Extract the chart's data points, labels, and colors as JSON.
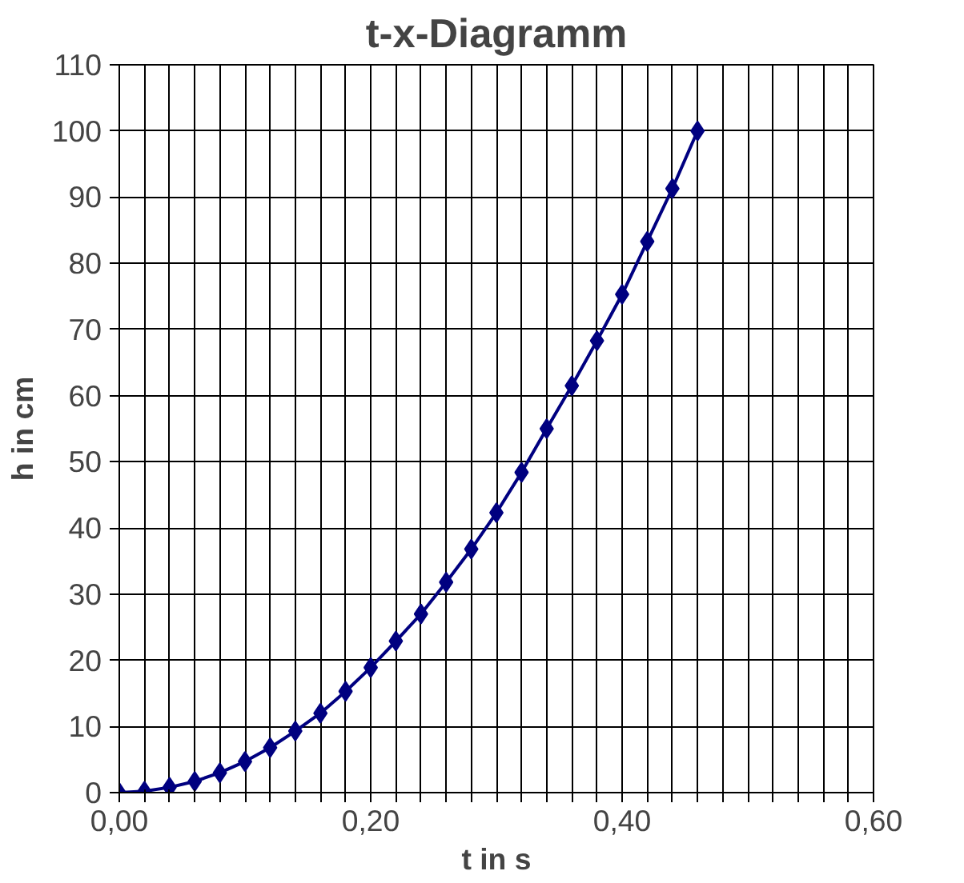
{
  "chart_data": {
    "type": "line",
    "title": "t-x-Diagramm",
    "xlabel": "t in s",
    "ylabel": "h in cm",
    "x": [
      0,
      0.02,
      0.04,
      0.06,
      0.08,
      0.1,
      0.12,
      0.14,
      0.16,
      0.18,
      0.2,
      0.22,
      0.24,
      0.26,
      0.28,
      0.3,
      0.32,
      0.34,
      0.36,
      0.38,
      0.4,
      0.42,
      0.44,
      0.46
    ],
    "series": [
      {
        "color": "#000080",
        "values": [
          0,
          0.2,
          0.8,
          1.7,
          3,
          4.7,
          6.8,
          9.3,
          12,
          15.3,
          18.9,
          22.9,
          27,
          31.8,
          36.8,
          42.3,
          48.4,
          55,
          61.5,
          68.3,
          75.3,
          83.3,
          91.3,
          100
        ]
      }
    ],
    "xlim": [
      0,
      0.6
    ],
    "ylim": [
      0,
      110
    ],
    "xticks": [
      {
        "value": 0,
        "label": "0,00"
      },
      {
        "value": 0.02,
        "label": null
      },
      {
        "value": 0.04,
        "label": null
      },
      {
        "value": 0.06,
        "label": null
      },
      {
        "value": 0.08,
        "label": null
      },
      {
        "value": 0.1,
        "label": null
      },
      {
        "value": 0.12,
        "label": null
      },
      {
        "value": 0.14,
        "label": null
      },
      {
        "value": 0.16,
        "label": null
      },
      {
        "value": 0.18,
        "label": null
      },
      {
        "value": 0.2,
        "label": "0,20"
      },
      {
        "value": 0.22,
        "label": null
      },
      {
        "value": 0.24,
        "label": null
      },
      {
        "value": 0.26,
        "label": null
      },
      {
        "value": 0.28,
        "label": null
      },
      {
        "value": 0.3,
        "label": null
      },
      {
        "value": 0.32,
        "label": null
      },
      {
        "value": 0.34,
        "label": null
      },
      {
        "value": 0.36,
        "label": null
      },
      {
        "value": 0.38,
        "label": null
      },
      {
        "value": 0.4,
        "label": "0,40"
      },
      {
        "value": 0.42,
        "label": null
      },
      {
        "value": 0.44,
        "label": null
      },
      {
        "value": 0.46,
        "label": null
      },
      {
        "value": 0.48,
        "label": null
      },
      {
        "value": 0.5,
        "label": null
      },
      {
        "value": 0.52,
        "label": null
      },
      {
        "value": 0.54,
        "label": null
      },
      {
        "value": 0.56,
        "label": null
      },
      {
        "value": 0.58,
        "label": null
      },
      {
        "value": 0.6,
        "label": "0,60"
      }
    ],
    "yticks": [
      0,
      10,
      20,
      30,
      40,
      50,
      60,
      70,
      80,
      90,
      100,
      110
    ],
    "grid": true,
    "marker": "diamond",
    "line_style": "solid"
  }
}
